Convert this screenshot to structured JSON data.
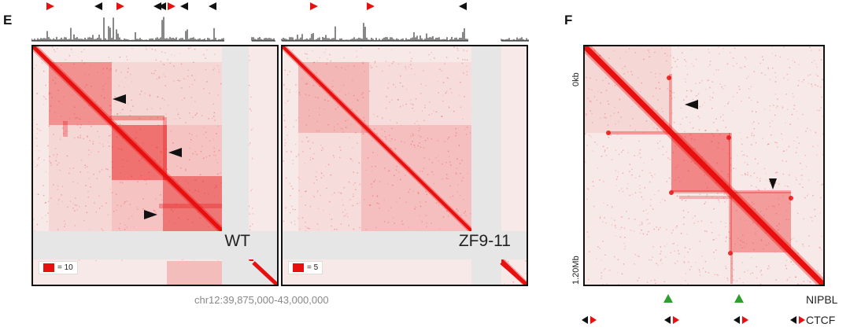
{
  "panel_e": {
    "letter": "E",
    "maps": [
      {
        "label": "WT",
        "scale_text": "= 10"
      },
      {
        "label": "ZF9-11",
        "scale_text": "= 5"
      }
    ],
    "coordinates": "chr12:39,875,000-43,000,000",
    "colors": {
      "contact": "#e8100f",
      "mask": "#e6e6e6",
      "arrow_black": "#111111",
      "arrow_red": "#e8100f"
    }
  },
  "panel_f": {
    "letter": "F",
    "y_top_label": "0kb",
    "y_bottom_label": "1.20Mb",
    "icon": "computer-icon",
    "track_nipbl": "NIPBL",
    "track_ctcf": "CTCF",
    "colors": {
      "nipbl": "#2e9e2e",
      "ctcf_left": "#111111",
      "ctcf_right": "#e8100f"
    }
  }
}
